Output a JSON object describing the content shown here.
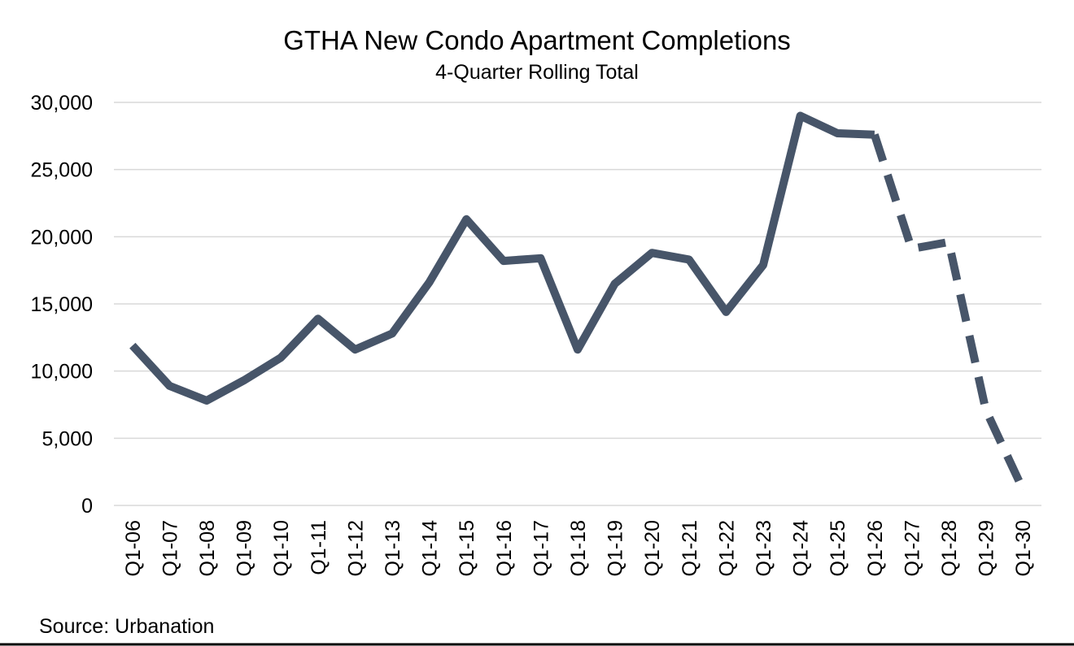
{
  "chart_data": {
    "type": "line",
    "title": "GTHA New Condo Apartment Completions",
    "subtitle": "4-Quarter Rolling Total",
    "xlabel": "",
    "ylabel": "",
    "ylim": [
      0,
      30000
    ],
    "yticks": [
      0,
      5000,
      10000,
      15000,
      20000,
      25000,
      30000
    ],
    "ytick_labels": [
      "0",
      "5,000",
      "10,000",
      "15,000",
      "20,000",
      "25,000",
      "30,000"
    ],
    "grid": true,
    "legend": "none",
    "categories": [
      "Q1-06",
      "Q1-07",
      "Q1-08",
      "Q1-09",
      "Q1-10",
      "Q1-11",
      "Q1-12",
      "Q1-13",
      "Q1-14",
      "Q1-15",
      "Q1-16",
      "Q1-17",
      "Q1-18",
      "Q1-19",
      "Q1-20",
      "Q1-21",
      "Q1-22",
      "Q1-23",
      "Q1-24",
      "Q1-25",
      "Q1-26",
      "Q1-27",
      "Q1-28",
      "Q1-29",
      "Q1-30"
    ],
    "series": [
      {
        "values": [
          11900,
          8900,
          7800,
          9300,
          11000,
          13900,
          11600,
          12800,
          16600,
          21300,
          18200,
          18400,
          11600,
          16500,
          18800,
          18300,
          14400,
          17900,
          29000,
          27700,
          27600,
          19100,
          19600,
          7100,
          1200
        ],
        "actual_through_index": 20,
        "line_style_actual": "solid",
        "line_style_forecast": "dashed"
      }
    ],
    "colors": {
      "line": "#475569",
      "grid": "#d9d9d9"
    },
    "source": "Source: Urbanation"
  }
}
